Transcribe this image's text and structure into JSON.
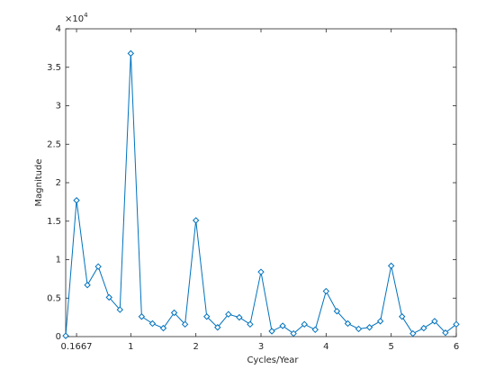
{
  "chart_data": {
    "type": "line",
    "xlabel": "Cycles/Year",
    "ylabel": "Magnitude",
    "y_multiplier_base": "×10",
    "y_multiplier_power": "4",
    "x": [
      0,
      0.1667,
      0.3333,
      0.5,
      0.6667,
      0.8333,
      1,
      1.1667,
      1.3333,
      1.5,
      1.6667,
      1.8333,
      2,
      2.1667,
      2.3333,
      2.5,
      2.6667,
      2.8333,
      3,
      3.1667,
      3.3333,
      3.5,
      3.6667,
      3.8333,
      4,
      4.1667,
      4.3333,
      4.5,
      4.6667,
      4.8333,
      5,
      5.1667,
      5.3333,
      5.5,
      5.6667,
      5.8333,
      6
    ],
    "series": [
      {
        "color": "#0072bd",
        "values": [
          0.01,
          1.77,
          0.67,
          0.91,
          0.51,
          0.35,
          3.68,
          0.26,
          0.17,
          0.11,
          0.31,
          0.16,
          1.51,
          0.26,
          0.12,
          0.29,
          0.25,
          0.16,
          0.84,
          0.07,
          0.14,
          0.04,
          0.16,
          0.09,
          0.59,
          0.33,
          0.17,
          0.1,
          0.12,
          0.2,
          0.92,
          0.26,
          0.04,
          0.11,
          0.2,
          0.05,
          0.16
        ]
      }
    ],
    "xlim": [
      0,
      6
    ],
    "xticks": [
      0.1667,
      1,
      2,
      3,
      4,
      5,
      6
    ],
    "ylim": [
      0,
      4
    ],
    "yticks": [
      0,
      0.5,
      1,
      1.5,
      2,
      2.5,
      3,
      3.5,
      4
    ]
  }
}
